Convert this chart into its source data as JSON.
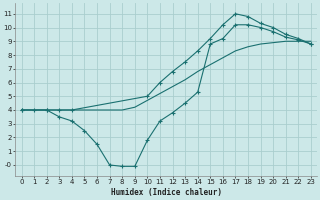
{
  "xlabel": "Humidex (Indice chaleur)",
  "background_color": "#cce8e8",
  "grid_color": "#aacece",
  "line_color": "#1a7070",
  "xlim": [
    -0.5,
    23.5
  ],
  "ylim": [
    -0.8,
    11.8
  ],
  "xticks": [
    0,
    1,
    2,
    3,
    4,
    5,
    6,
    7,
    8,
    9,
    10,
    11,
    12,
    13,
    14,
    15,
    16,
    17,
    18,
    19,
    20,
    21,
    22,
    23
  ],
  "yticks": [
    0,
    1,
    2,
    3,
    4,
    5,
    6,
    7,
    8,
    9,
    10,
    11
  ],
  "ytick_labels": [
    "-0",
    "1",
    "2",
    "3",
    "4",
    "5",
    "6",
    "7",
    "8",
    "9",
    "10",
    "11"
  ],
  "line1_x": [
    0,
    1,
    2,
    3,
    4,
    5,
    6,
    7,
    8,
    9,
    10,
    11,
    12,
    13,
    14,
    15,
    16,
    17,
    18,
    19,
    20,
    21,
    22,
    23
  ],
  "line1_y": [
    4.0,
    4.0,
    4.0,
    4.0,
    4.0,
    4.0,
    4.0,
    4.0,
    4.0,
    4.2,
    4.7,
    5.2,
    5.7,
    6.2,
    6.8,
    7.3,
    7.8,
    8.3,
    8.6,
    8.8,
    8.9,
    9.0,
    9.0,
    9.0
  ],
  "line2_x": [
    0,
    1,
    2,
    3,
    4,
    5,
    6,
    7,
    8,
    9,
    10,
    11,
    12,
    13,
    14,
    15,
    16,
    17,
    18,
    19,
    20,
    21,
    22,
    23
  ],
  "line2_y": [
    4.0,
    4.0,
    4.0,
    3.5,
    3.2,
    2.5,
    1.5,
    0.0,
    -0.1,
    -0.1,
    1.8,
    3.2,
    3.8,
    4.5,
    5.3,
    8.8,
    9.2,
    10.2,
    10.2,
    10.0,
    9.7,
    9.3,
    9.1,
    8.8
  ],
  "line3_x": [
    0,
    2,
    3,
    4,
    10,
    11,
    12,
    13,
    14,
    15,
    16,
    17,
    18,
    19,
    20,
    21,
    22,
    23
  ],
  "line3_y": [
    4.0,
    4.0,
    4.0,
    4.0,
    5.0,
    6.0,
    6.8,
    7.5,
    8.3,
    9.2,
    10.2,
    11.0,
    10.8,
    10.3,
    10.0,
    9.5,
    9.2,
    8.8
  ]
}
